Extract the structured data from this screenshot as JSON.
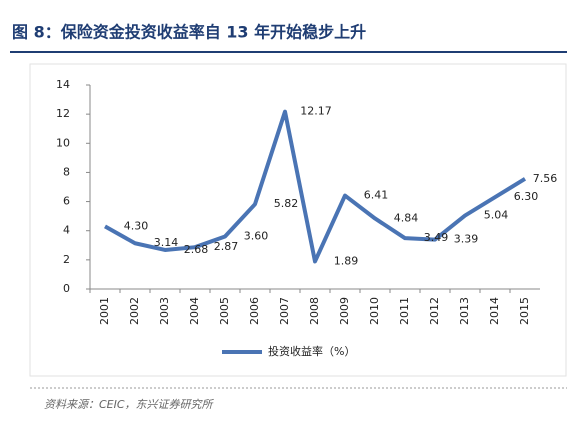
{
  "chart_data": {
    "type": "line",
    "title": "图 8：保险资金投资收益率自 13 年开始稳步上升",
    "categories": [
      "2001",
      "2002",
      "2003",
      "2004",
      "2005",
      "2006",
      "2007",
      "2008",
      "2009",
      "2010",
      "2011",
      "2012",
      "2013",
      "2014",
      "2015"
    ],
    "series": [
      {
        "name": "投资收益率（%）",
        "color": "#4a74b4",
        "values": [
          4.3,
          3.14,
          2.68,
          2.87,
          3.6,
          5.82,
          12.17,
          1.89,
          6.41,
          4.84,
          3.49,
          3.39,
          5.04,
          6.3,
          7.56
        ],
        "value_labels": [
          "4.30",
          "3.14",
          "2.68",
          "2.87",
          "3.60",
          "5.82",
          "12.17",
          "1.89",
          "6.41",
          "4.84",
          "3.49",
          "3.39",
          "5.04",
          "6.30",
          "7.56"
        ]
      }
    ],
    "ylim": [
      0,
      14
    ],
    "yticks": [
      0,
      2,
      4,
      6,
      8,
      10,
      12,
      14
    ],
    "legend": "bottom",
    "source": "资料来源：CEIC，东兴证券研究所"
  }
}
